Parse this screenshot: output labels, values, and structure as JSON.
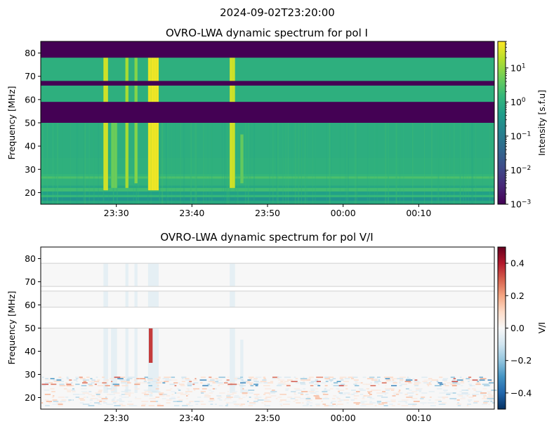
{
  "suptitle": "2024-09-02T23:20:00",
  "colors": {
    "viridis": [
      "#440154",
      "#482878",
      "#3e4a89",
      "#31688e",
      "#26828e",
      "#1f9e89",
      "#35b779",
      "#6ece58",
      "#b5de2b",
      "#fde725"
    ],
    "rdbu_r": [
      "#053061",
      "#2166ac",
      "#4393c3",
      "#92c5de",
      "#d1e5f0",
      "#f7f7f7",
      "#fddbc7",
      "#f4a582",
      "#d6604d",
      "#b2182b",
      "#67001f"
    ],
    "masked_flag": "#440154"
  },
  "chart_data": [
    {
      "type": "heatmap",
      "title": "OVRO-LWA dynamic spectrum for pol I",
      "ylabel": "Frequency [MHz]",
      "xlim_minutes_after_2320": [
        0,
        60
      ],
      "ylim": [
        15,
        85
      ],
      "xticks": [
        "23:30",
        "23:40",
        "23:50",
        "00:00",
        "00:10"
      ],
      "yticks": [
        20,
        30,
        40,
        50,
        60,
        70,
        80
      ],
      "colorbar": {
        "label": "Intensity [s.f.u]",
        "scale": "log",
        "range": [
          0.001,
          60
        ],
        "ticks": [
          "10^1",
          "10^0",
          "10^-1",
          "10^-2",
          "10^-3"
        ]
      },
      "flagged_bands_mhz": [
        [
          78,
          85
        ],
        [
          66,
          68
        ],
        [
          50,
          59
        ]
      ],
      "background_level_sfu": 1,
      "bursts": [
        {
          "start": 8.3,
          "end": 8.9,
          "fmin": 21,
          "fmax": 78,
          "peak_sfu": 30
        },
        {
          "start": 9.3,
          "end": 10.1,
          "fmin": 22,
          "fmax": 55,
          "peak_sfu": 5
        },
        {
          "start": 11.2,
          "end": 11.6,
          "fmin": 22,
          "fmax": 78,
          "peak_sfu": 15
        },
        {
          "start": 12.4,
          "end": 12.8,
          "fmin": 24,
          "fmax": 78,
          "peak_sfu": 8
        },
        {
          "start": 14.2,
          "end": 15.6,
          "fmin": 21,
          "fmax": 78,
          "peak_sfu": 50
        },
        {
          "start": 25.0,
          "end": 25.7,
          "fmin": 22,
          "fmax": 78,
          "peak_sfu": 30
        },
        {
          "start": 26.4,
          "end": 26.8,
          "fmin": 24,
          "fmax": 45,
          "peak_sfu": 5
        }
      ]
    },
    {
      "type": "heatmap",
      "title": "OVRO-LWA dynamic spectrum for pol V/I",
      "ylabel": "Frequency [MHz]",
      "xlim_minutes_after_2320": [
        0,
        60
      ],
      "ylim": [
        15,
        85
      ],
      "xticks": [
        "23:30",
        "23:40",
        "23:50",
        "00:00",
        "00:10"
      ],
      "yticks": [
        20,
        30,
        40,
        50,
        60,
        70,
        80
      ],
      "colorbar": {
        "label": "V/I",
        "range": [
          -0.5,
          0.5
        ],
        "ticks": [
          "0.4",
          "0.2",
          "0.0",
          "−0.2",
          "−0.4"
        ]
      },
      "flagged_bands_mhz": [
        [
          78,
          85
        ],
        [
          66,
          68
        ],
        [
          50,
          59
        ]
      ],
      "features": [
        {
          "kind": "positive_streak",
          "start": 14.3,
          "end": 14.8,
          "fmin": 35,
          "fmax": 50,
          "value": 0.35
        },
        {
          "kind": "noise_band",
          "fmin": 25,
          "fmax": 29,
          "amplitude": 0.35
        },
        {
          "kind": "noise_band",
          "fmin": 16,
          "fmax": 24,
          "amplitude": 0.18
        }
      ]
    }
  ]
}
